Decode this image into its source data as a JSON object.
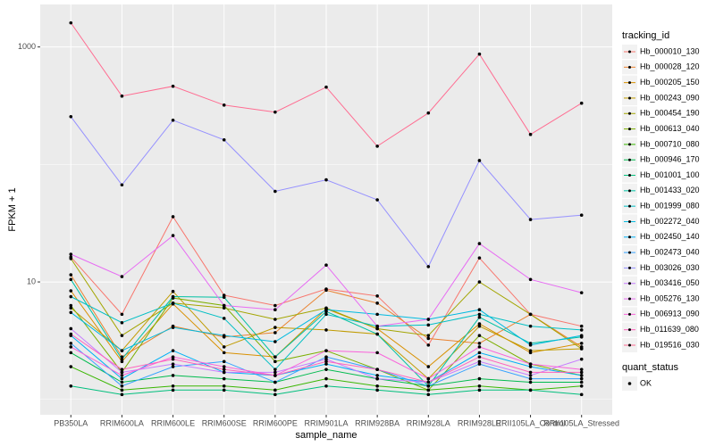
{
  "chart_data": {
    "type": "line",
    "x_label": "sample_name",
    "y_label": "FPKM + 1",
    "log_y": true,
    "grid": true,
    "legend_title": "tracking_id",
    "point_legend_title": "quant_status",
    "point_legend_label": "OK",
    "point_color": "#000000",
    "categories": [
      "PB350LA",
      "RRIM600LA",
      "RRIM600LE",
      "RRIM600SE",
      "RRIM600PE",
      "RRIM901LA",
      "RRIM928BA",
      "RRIM928LA",
      "RRIM928LE",
      "RRII105LA_Control",
      "RRII105LA_Stressed"
    ],
    "ylim": [
      0.74,
      2300
    ],
    "yticks": [
      10,
      1000
    ],
    "series": [
      {
        "name": "Hb_000010_130",
        "color": "#F8766D",
        "values": [
          16.3,
          5.3,
          35.9,
          7.7,
          6.3,
          8.7,
          7.6,
          2.9,
          16,
          5.3,
          4.2
        ]
      },
      {
        "name": "Hb_000028_120",
        "color": "#EA8331",
        "values": [
          11.5,
          2.3,
          4.2,
          3.4,
          3.7,
          8.5,
          6.6,
          3.3,
          3.0,
          5.3,
          2.8
        ]
      },
      {
        "name": "Hb_000205_150",
        "color": "#D89000",
        "values": [
          8.4,
          2.1,
          6.5,
          2.5,
          2.3,
          5.9,
          4.0,
          1.9,
          4.4,
          2.5,
          3.0
        ]
      },
      {
        "name": "Hb_000243_090",
        "color": "#C09B00",
        "values": [
          6.0,
          2.6,
          8.3,
          2.8,
          4.1,
          3.9,
          3.6,
          1.5,
          4.2,
          2.6,
          2.7
        ]
      },
      {
        "name": "Hb_000454_190",
        "color": "#A3A500",
        "values": [
          15.8,
          3.5,
          6.6,
          6.0,
          4.8,
          6.0,
          4.0,
          3.5,
          10,
          5.3,
          2.7
        ]
      },
      {
        "name": "Hb_000613_040",
        "color": "#7CAE00",
        "values": [
          6.3,
          1.7,
          7.3,
          6.3,
          2.1,
          2.6,
          1.8,
          1.2,
          3.5,
          2.0,
          1.6
        ]
      },
      {
        "name": "Hb_000710_080",
        "color": "#39B600",
        "values": [
          1.9,
          1.2,
          1.3,
          1.3,
          1.2,
          1.5,
          1.3,
          1.2,
          1.3,
          1.2,
          1.3
        ]
      },
      {
        "name": "Hb_000946_170",
        "color": "#00BB4E",
        "values": [
          2.5,
          1.4,
          1.6,
          1.5,
          1.4,
          1.8,
          1.5,
          1.3,
          1.5,
          1.4,
          1.4
        ]
      },
      {
        "name": "Hb_001001_100",
        "color": "#00BF7D",
        "values": [
          1.3,
          1.1,
          1.2,
          1.2,
          1.1,
          1.3,
          1.2,
          1.1,
          1.2,
          1.2,
          1.1
        ]
      },
      {
        "name": "Hb_001433_020",
        "color": "#00C1A3",
        "values": [
          10.5,
          2.2,
          7.5,
          7.4,
          2.3,
          5.6,
          3.6,
          1.3,
          5.0,
          3.0,
          3.4
        ]
      },
      {
        "name": "Hb_001999_080",
        "color": "#00BFC4",
        "values": [
          7.5,
          4.5,
          6.6,
          4.9,
          1.8,
          5.3,
          4.2,
          4.3,
          5.3,
          4.2,
          3.9
        ]
      },
      {
        "name": "Hb_002272_040",
        "color": "#00BAE0",
        "values": [
          5.5,
          2.6,
          4.1,
          3.5,
          3.1,
          5.8,
          5.3,
          4.8,
          5.8,
          2.9,
          3.5
        ]
      },
      {
        "name": "Hb_002450_140",
        "color": "#00B0F6",
        "values": [
          3.5,
          1.5,
          2.6,
          1.7,
          1.6,
          2.0,
          1.6,
          1.4,
          2.5,
          1.9,
          1.6
        ]
      },
      {
        "name": "Hb_002473_040",
        "color": "#35A2FF",
        "values": [
          3.0,
          1.3,
          1.9,
          2.1,
          1.4,
          2.3,
          1.8,
          1.3,
          2.0,
          1.5,
          1.5
        ]
      },
      {
        "name": "Hb_003026_030",
        "color": "#9590FF",
        "values": [
          255,
          67,
          238,
          162,
          59,
          74,
          50,
          13.5,
          108,
          34,
          37
        ]
      },
      {
        "name": "Hb_003416_050",
        "color": "#C77CFF",
        "values": [
          4.0,
          1.7,
          2.0,
          1.7,
          1.7,
          2.2,
          1.5,
          1.4,
          2.1,
          1.6,
          2.2
        ]
      },
      {
        "name": "Hb_005276_130",
        "color": "#E76BF3",
        "values": [
          17.2,
          11.1,
          24.8,
          6.3,
          5.8,
          13.9,
          4.2,
          4.8,
          21.2,
          10.5,
          8.1
        ]
      },
      {
        "name": "Hb_006913_090",
        "color": "#FA62DB",
        "values": [
          2.8,
          1.6,
          2.3,
          1.9,
          1.6,
          2.6,
          2.5,
          1.5,
          2.8,
          2.0,
          1.8
        ]
      },
      {
        "name": "Hb_011639_080",
        "color": "#FF62BC",
        "values": [
          3.6,
          1.8,
          2.2,
          1.8,
          1.6,
          2.1,
          1.8,
          1.4,
          2.3,
          1.7,
          1.7
        ]
      },
      {
        "name": "Hb_019516_030",
        "color": "#FF6C91",
        "values": [
          1604,
          382,
          463,
          320,
          279,
          455,
          143,
          274,
          869,
          180,
          332
        ]
      }
    ]
  }
}
